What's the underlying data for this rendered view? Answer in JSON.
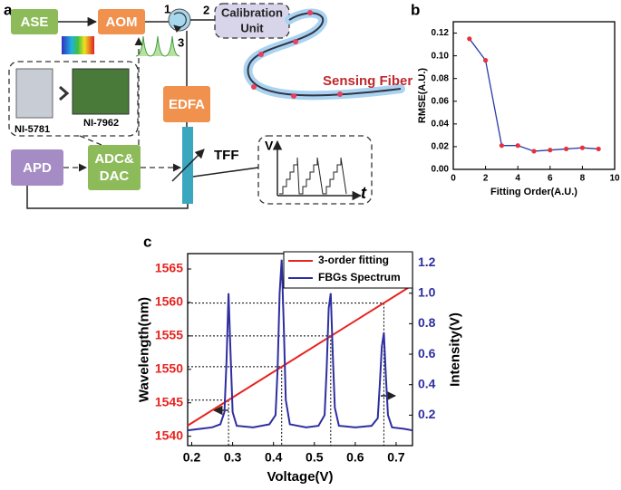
{
  "panel_labels": [
    "a",
    "b",
    "c"
  ],
  "diagram": {
    "nodes": [
      {
        "label": "ASE"
      },
      {
        "label": "AOM"
      },
      {
        "label": [
          "Calibration",
          "Unit"
        ]
      },
      {
        "label": "EDFA"
      },
      {
        "label": "APD"
      },
      {
        "label": [
          "ADC&",
          "DAC"
        ]
      }
    ],
    "port_labels": [
      "1",
      "2",
      "3"
    ],
    "card_labels": [
      "NI-5781",
      "NI-7962"
    ],
    "fiber_label": "Sensing Fiber",
    "filter_label": "TFF",
    "waveform_axes": {
      "y": "V",
      "x": "t"
    }
  },
  "chart_data": [
    {
      "type": "line",
      "x": [
        1,
        2,
        3,
        4,
        5,
        6,
        7,
        8,
        9
      ],
      "values": [
        0.115,
        0.096,
        0.021,
        0.021,
        0.016,
        0.017,
        0.018,
        0.019,
        0.018
      ],
      "color": "#2a3aa8",
      "marker_color": "#e8303a",
      "xlabel": "Fitting Order(A.U.)",
      "ylabel": "RMSE(A.U.)",
      "xlim": [
        0,
        10
      ],
      "xticks": [
        0,
        2,
        4,
        6,
        8,
        10
      ],
      "ylim": [
        0,
        0.13
      ],
      "yticks": [
        {
          "value": 0,
          "label": "0.00"
        },
        0.02,
        0.04,
        0.06,
        0.08,
        {
          "value": 0.1,
          "label": "0.10"
        },
        0.12
      ]
    },
    {
      "type": "line",
      "series": [
        {
          "name": "3-order fitting",
          "color": "#e8231f",
          "x": [
            0.19,
            0.74
          ],
          "values": [
            1541.6,
            1562.6
          ]
        },
        {
          "name": "FBGs Spectrum",
          "color": "#2e2ea0",
          "axis": "y2",
          "x": [
            0.19,
            0.22,
            0.25,
            0.27,
            0.28,
            0.285,
            0.29,
            0.295,
            0.3,
            0.31,
            0.35,
            0.39,
            0.405,
            0.41,
            0.415,
            0.42,
            0.425,
            0.43,
            0.44,
            0.48,
            0.51,
            0.525,
            0.53,
            0.535,
            0.54,
            0.545,
            0.55,
            0.56,
            0.6,
            0.64,
            0.655,
            0.66,
            0.665,
            0.67,
            0.675,
            0.68,
            0.69,
            0.72,
            0.74
          ],
          "values": [
            0.1,
            0.11,
            0.12,
            0.14,
            0.22,
            0.55,
            1.0,
            0.6,
            0.22,
            0.13,
            0.12,
            0.14,
            0.2,
            0.5,
            1.0,
            1.22,
            0.8,
            0.3,
            0.14,
            0.12,
            0.13,
            0.2,
            0.5,
            0.9,
            1.0,
            0.6,
            0.25,
            0.13,
            0.12,
            0.13,
            0.18,
            0.4,
            0.65,
            0.74,
            0.45,
            0.2,
            0.12,
            0.11,
            0.1
          ]
        }
      ],
      "reference_lines": [
        {
          "x": 0.29,
          "y": 1545.4
        },
        {
          "x": 0.42,
          "y": 1550.4
        },
        {
          "x": 0.54,
          "y": 1555.0
        },
        {
          "x": 0.67,
          "y": 1559.9
        }
      ],
      "xlabel": "Voltage(V)",
      "ylabel": "Wavelength(nm)",
      "y2label": "Intensity(V)",
      "xlim": [
        0.19,
        0.74
      ],
      "xticks": [
        0.2,
        0.3,
        0.4,
        0.5,
        0.6,
        0.7
      ],
      "ylim": [
        1538.6,
        1567.3
      ],
      "yticks": [
        1540,
        1545,
        1550,
        1555,
        1560,
        1565
      ],
      "y2lim": [
        0,
        1.26
      ],
      "y2ticks": [
        0.2,
        0.4,
        0.6,
        0.8,
        {
          "value": 1,
          "label": "1.0"
        },
        1.2
      ],
      "legend": "upper right"
    }
  ]
}
